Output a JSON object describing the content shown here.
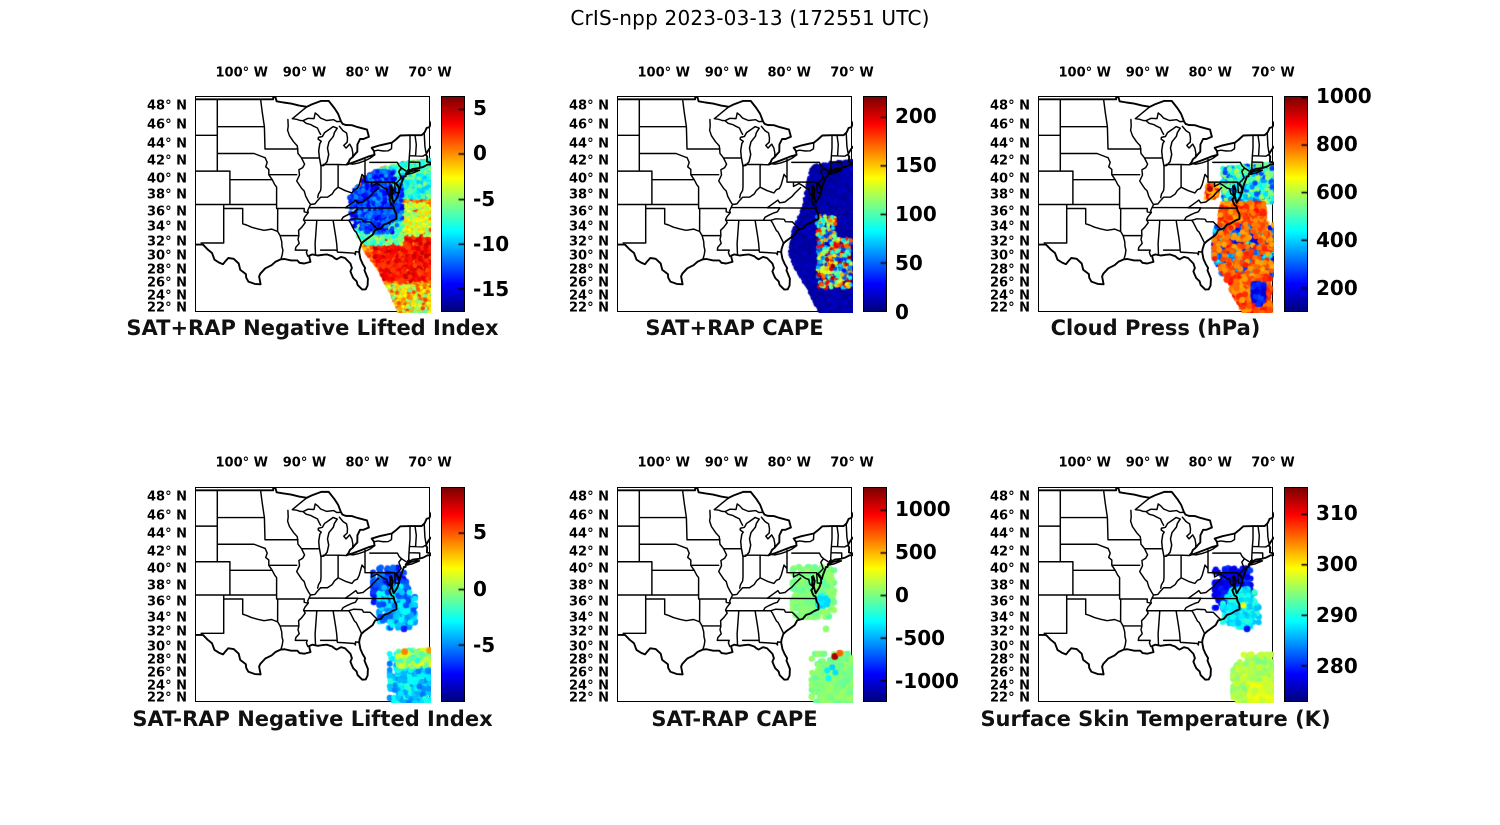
{
  "figure": {
    "title": "CrIS-npp 2023-03-13 (172551 UTC)"
  },
  "colors": {
    "background": "#ffffff",
    "text": "#000000",
    "map_lines": "#000000",
    "colormap": "jet"
  },
  "map_axes": {
    "lon_tick_labels": [
      "100° W",
      "90° W",
      "80° W",
      "70° W"
    ],
    "lon_tick_values": [
      100,
      90,
      80,
      70
    ],
    "lat_tick_labels": [
      "48° N",
      "46° N",
      "44° N",
      "42° N",
      "40° N",
      "38° N",
      "36° N",
      "34° N",
      "32° N",
      "30° N",
      "28° N",
      "26° N",
      "24° N",
      "22° N"
    ],
    "lat_tick_values": [
      48,
      46,
      44,
      42,
      40,
      38,
      36,
      34,
      32,
      30,
      28,
      26,
      24,
      22
    ]
  },
  "chart_data": {
    "type": "map-scatter-grid",
    "rows": 2,
    "cols": 3,
    "panels": [
      {
        "id": "sat-plus-rap-negative-lifted-index",
        "title": "SAT+RAP Negative Lifted Index",
        "colorbar": {
          "vmin": -17.5,
          "vmax": 6.3,
          "ticks": [
            {
              "v": 5,
              "label": "5"
            },
            {
              "v": 0,
              "label": "0"
            },
            {
              "v": -5,
              "label": "-5"
            },
            {
              "v": -10,
              "label": "-10"
            },
            {
              "v": -15,
              "label": "-15"
            }
          ]
        },
        "clip_polygon": [
          [
            82.8,
            34.6
          ],
          [
            83.0,
            38.0
          ],
          [
            81.0,
            40.2
          ],
          [
            78.0,
            41.3
          ],
          [
            74.0,
            42.0
          ],
          [
            69.9,
            42.3
          ],
          [
            69.9,
            21.2
          ],
          [
            75.0,
            21.2
          ],
          [
            76.3,
            24.5
          ],
          [
            78.3,
            28.3
          ],
          [
            80.2,
            30.5
          ],
          [
            82.8,
            34.6
          ]
        ],
        "regions": [
          {
            "shape": "rect",
            "lon": [
              69.9,
              81.0
            ],
            "lat": [
              21.2,
              42.3
            ],
            "n": 5200,
            "r": 2.1,
            "v": [
              -1.2,
              2.6
            ],
            "clip": true
          },
          {
            "shape": "rect",
            "lon": [
              70.0,
              79.0
            ],
            "lat": [
              26.5,
              33.5
            ],
            "n": 600,
            "r": 2.3,
            "v": [
              1.5,
              4.6
            ],
            "clip": true
          },
          {
            "shape": "rect",
            "lon": [
              70.0,
              78.5
            ],
            "lat": [
              21.2,
              25.8
            ],
            "n": 1000,
            "r": 2.1,
            "v": [
              -6.5,
              2.0
            ],
            "clip": true
          },
          {
            "shape": "rect",
            "lon": [
              70.0,
              77.5
            ],
            "lat": [
              33.0,
              37.2
            ],
            "n": 320,
            "r": 2.1,
            "v": [
              -6.0,
              -1.5
            ],
            "clip": true
          },
          {
            "shape": "rect",
            "lon": [
              70.0,
              78.5
            ],
            "lat": [
              37.8,
              42.3
            ],
            "n": 950,
            "r": 2.1,
            "v": [
              -10.0,
              -5.0
            ],
            "clip": true
          },
          {
            "shape": "rect",
            "lon": [
              74.5,
              82.0
            ],
            "lat": [
              31.8,
              34.8
            ],
            "n": 260,
            "r": 2.1,
            "v": [
              -9.0,
              -4.0
            ],
            "clip": true
          },
          {
            "shape": "gauss",
            "c": [
              78.8,
              37.2
            ],
            "s": [
              1.9,
              1.7
            ],
            "n": 1200,
            "r": 2.3,
            "v": [
              -15.5,
              -10.5
            ],
            "clip": true
          }
        ],
        "points": []
      },
      {
        "id": "sat-plus-rap-cape",
        "title": "SAT+RAP CAPE",
        "colorbar": {
          "vmin": 0,
          "vmax": 220,
          "ticks": [
            {
              "v": 200,
              "label": "200"
            },
            {
              "v": 150,
              "label": "150"
            },
            {
              "v": 100,
              "label": "100"
            },
            {
              "v": 50,
              "label": "50"
            },
            {
              "v": 0,
              "label": "0"
            }
          ]
        },
        "clip_polygon": [
          [
            76.6,
            41.6
          ],
          [
            73.5,
            42.0
          ],
          [
            69.9,
            42.2
          ],
          [
            69.9,
            21.2
          ],
          [
            75.2,
            21.2
          ],
          [
            77.2,
            25.4
          ],
          [
            79.2,
            28.5
          ],
          [
            80.1,
            30.6
          ],
          [
            79.5,
            33.6
          ],
          [
            78.0,
            36.8
          ],
          [
            76.6,
            41.6
          ]
        ],
        "regions": [
          {
            "shape": "rect",
            "lon": [
              69.9,
              80.2
            ],
            "lat": [
              21.2,
              42.2
            ],
            "n": 5200,
            "r": 2.1,
            "v": [
              2,
              16
            ],
            "clip": true
          },
          {
            "shape": "rect",
            "lon": [
              70.3,
              75.6
            ],
            "lat": [
              25.4,
              32.6
            ],
            "n": 330,
            "r": 2.2,
            "v": [
              30,
              215
            ],
            "clip": true
          },
          {
            "shape": "rect",
            "lon": [
              72.8,
              75.8
            ],
            "lat": [
              32.6,
              35.6
            ],
            "n": 70,
            "r": 2.1,
            "v": [
              30,
              190
            ],
            "clip": true
          }
        ],
        "points": []
      },
      {
        "id": "cloud-press-hpa",
        "title": "Cloud Press (hPa)",
        "colorbar": {
          "vmin": 100,
          "vmax": 1000,
          "ticks": [
            {
              "v": 1000,
              "label": "1000"
            },
            {
              "v": 800,
              "label": "800"
            },
            {
              "v": 600,
              "label": "600"
            },
            {
              "v": 400,
              "label": "400"
            },
            {
              "v": 200,
              "label": "200"
            }
          ]
        },
        "clip_polygon": [
          [
            78.6,
            41.3
          ],
          [
            69.9,
            41.9
          ],
          [
            69.9,
            21.2
          ],
          [
            74.6,
            21.2
          ],
          [
            76.4,
            24.6
          ],
          [
            78.6,
            28.0
          ],
          [
            80.0,
            30.4
          ],
          [
            79.4,
            33.6
          ],
          [
            78.2,
            37.0
          ],
          [
            78.6,
            41.3
          ]
        ],
        "regions": [
          {
            "shape": "rect",
            "lon": [
              70.0,
              78.2
            ],
            "lat": [
              37.3,
              41.8
            ],
            "n": 950,
            "r": 2.6,
            "v": [
              260,
              620
            ],
            "clip": true
          },
          {
            "shape": "rect",
            "lon": [
              71.5,
              78.6
            ],
            "lat": [
              33.6,
              37.2
            ],
            "n": 380,
            "r": 2.7,
            "v": [
              730,
              880
            ],
            "clip": true
          },
          {
            "shape": "rect",
            "lon": [
              70.0,
              79.6
            ],
            "lat": [
              27.4,
              34.2
            ],
            "n": 1250,
            "r": 2.6,
            "v": [
              140,
              470
            ],
            "clip": true
          },
          {
            "shape": "rect",
            "lon": [
              70.0,
              79.8
            ],
            "lat": [
              27.6,
              34.6
            ],
            "n": 240,
            "r": 2.7,
            "v": [
              730,
              870
            ],
            "clip": true
          },
          {
            "shape": "rect",
            "lon": [
              70.6,
              77.6
            ],
            "lat": [
              21.2,
              27.4
            ],
            "n": 520,
            "r": 3.1,
            "v": [
              730,
              890
            ],
            "clip": true
          },
          {
            "shape": "rect",
            "lon": [
              71.6,
              73.4
            ],
            "lat": [
              22.8,
              26.2
            ],
            "n": 55,
            "r": 3.0,
            "v": [
              150,
              280
            ],
            "clip": true
          },
          {
            "shape": "rect",
            "lon": [
              79.0,
              80.8
            ],
            "lat": [
              37.8,
              39.5
            ],
            "n": 48,
            "r": 2.7,
            "v": [
              700,
              900
            ],
            "clip": false
          }
        ],
        "points": [
          {
            "lon": 80.2,
            "lat": 38.9,
            "v": 950,
            "r": 3.0
          }
        ]
      },
      {
        "id": "sat-minus-rap-negative-lifted-index",
        "title": "SAT-RAP Negative Lifted Index",
        "colorbar": {
          "vmin": -10,
          "vmax": 9,
          "ticks": [
            {
              "v": 5,
              "label": "5"
            },
            {
              "v": 0,
              "label": "0"
            },
            {
              "v": -5,
              "label": "-5"
            }
          ]
        },
        "clip_polygon": null,
        "regions": [
          {
            "shape": "gauss",
            "c": [
              76.6,
              37.9
            ],
            "s": [
              1.2,
              1.1
            ],
            "n": 380,
            "r": 3.0,
            "v": [
              -8.0,
              -5.0
            ],
            "clip": false
          },
          {
            "shape": "gauss",
            "c": [
              75.4,
              35.4
            ],
            "s": [
              1.3,
              1.2
            ],
            "n": 380,
            "r": 3.0,
            "v": [
              -6.5,
              -2.5
            ],
            "clip": false
          },
          {
            "shape": "gauss",
            "c": [
              72.4,
              24.9
            ],
            "s": [
              1.9,
              1.9
            ],
            "n": 650,
            "r": 2.9,
            "v": [
              -5.5,
              -2.0
            ],
            "clip": false
          },
          {
            "shape": "rect",
            "lon": [
              70.0,
              75.3
            ],
            "lat": [
              27.2,
              29.6
            ],
            "n": 170,
            "r": 2.9,
            "v": [
              -2.5,
              1.5
            ],
            "clip": false
          }
        ],
        "points": [
          {
            "lon": 74.2,
            "lat": 29.4,
            "v": 4.2,
            "r": 3.3
          },
          {
            "lon": 70.2,
            "lat": 29.6,
            "v": 3.8,
            "r": 3.3
          },
          {
            "lon": 74.3,
            "lat": 32.6,
            "v": -7.0,
            "r": 3.3
          }
        ]
      },
      {
        "id": "sat-minus-rap-cape",
        "title": "SAT-RAP CAPE",
        "colorbar": {
          "vmin": -1250,
          "vmax": 1250,
          "ticks": [
            {
              "v": 1000,
              "label": "1000"
            },
            {
              "v": 500,
              "label": "500"
            },
            {
              "v": 0,
              "label": "0"
            },
            {
              "v": -500,
              "label": "-500"
            },
            {
              "v": -1000,
              "label": "-1000"
            }
          ]
        },
        "clip_polygon": null,
        "regions": [
          {
            "shape": "gauss",
            "c": [
              76.3,
              37.3
            ],
            "s": [
              1.5,
              1.4
            ],
            "n": 700,
            "r": 3.1,
            "v": [
              -90,
              70
            ],
            "clip": false
          },
          {
            "shape": "gauss",
            "c": [
              74.9,
              36.1
            ],
            "s": [
              0.4,
              0.35
            ],
            "n": 28,
            "r": 3.0,
            "v": [
              -480,
              -260
            ],
            "clip": false
          },
          {
            "shape": "gauss",
            "c": [
              72.4,
              24.9
            ],
            "s": [
              1.9,
              1.9
            ],
            "n": 700,
            "r": 3.1,
            "v": [
              -80,
              80
            ],
            "clip": false
          }
        ],
        "points": [
          {
            "lon": 72.9,
            "lat": 28.7,
            "v": 1150,
            "r": 3.4
          },
          {
            "lon": 72.1,
            "lat": 29.2,
            "v": 700,
            "r": 3.4
          },
          {
            "lon": 73.3,
            "lat": 27.1,
            "v": -420,
            "r": 3.0
          },
          {
            "lon": 72.8,
            "lat": 26.3,
            "v": -380,
            "r": 3.0
          },
          {
            "lon": 74.1,
            "lat": 26.6,
            "v": -350,
            "r": 3.0
          },
          {
            "lon": 73.9,
            "lat": 25.4,
            "v": -300,
            "r": 3.0
          },
          {
            "lon": 74.3,
            "lat": 32.6,
            "v": 30,
            "r": 3.3
          }
        ]
      },
      {
        "id": "surface-skin-temperature-k",
        "title": "Surface Skin Temperature (K)",
        "colorbar": {
          "vmin": 273,
          "vmax": 315,
          "ticks": [
            {
              "v": 310,
              "label": "310"
            },
            {
              "v": 300,
              "label": "300"
            },
            {
              "v": 290,
              "label": "290"
            },
            {
              "v": 280,
              "label": "280"
            }
          ]
        },
        "clip_polygon": null,
        "regions": [
          {
            "shape": "gauss",
            "c": [
              76.6,
              37.8
            ],
            "s": [
              1.3,
              1.1
            ],
            "n": 420,
            "r": 3.0,
            "v": [
              275.5,
              281
            ],
            "clip": false
          },
          {
            "shape": "gauss",
            "c": [
              75.3,
              35.3
            ],
            "s": [
              1.3,
              1.1
            ],
            "n": 380,
            "r": 3.0,
            "v": [
              286,
              291
            ],
            "clip": false
          },
          {
            "shape": "gauss",
            "c": [
              72.3,
              24.8
            ],
            "s": [
              1.9,
              1.9
            ],
            "n": 720,
            "r": 3.0,
            "v": [
              293.5,
              297.5
            ],
            "clip": false
          },
          {
            "shape": "rect",
            "lon": [
              70.0,
              74.0
            ],
            "lat": [
              21.3,
              24.5
            ],
            "n": 260,
            "r": 3.0,
            "v": [
              296,
              299.5
            ],
            "clip": false
          }
        ],
        "points": [
          {
            "lon": 74.9,
            "lat": 35.7,
            "v": 299,
            "r": 3.0
          },
          {
            "lon": 74.3,
            "lat": 32.6,
            "v": 279,
            "r": 3.3
          }
        ]
      }
    ]
  }
}
